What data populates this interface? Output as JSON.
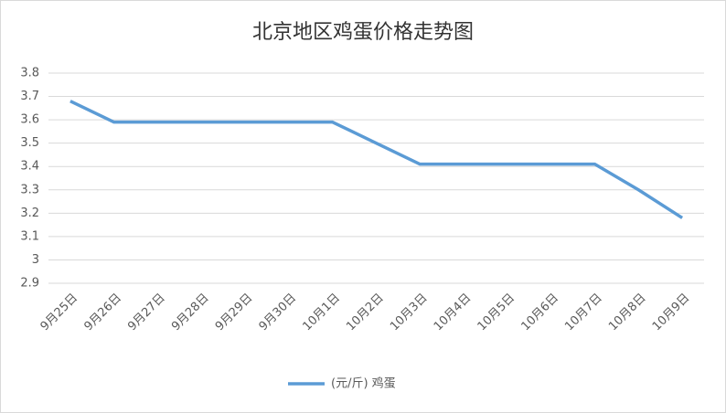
{
  "chart_data": {
    "type": "line",
    "title": "北京地区鸡蛋价格走势图",
    "categories": [
      "9月25日",
      "9月26日",
      "9月27日",
      "9月28日",
      "9月29日",
      "9月30日",
      "10月1日",
      "10月2日",
      "10月3日",
      "10月4日",
      "10月5日",
      "10月6日",
      "10月7日",
      "10月8日",
      "10月9日"
    ],
    "series": [
      {
        "name": "(元/斤) 鸡蛋",
        "color": "#5b9bd5",
        "values": [
          3.68,
          3.59,
          3.59,
          3.59,
          3.59,
          3.59,
          3.59,
          3.5,
          3.41,
          3.41,
          3.41,
          3.41,
          3.41,
          3.3,
          3.18
        ]
      }
    ],
    "ylim": [
      2.9,
      3.8
    ],
    "yticks": [
      2.9,
      3,
      3.1,
      3.2,
      3.3,
      3.4,
      3.5,
      3.6,
      3.7,
      3.8
    ],
    "grid": true,
    "legend": "bottom"
  }
}
